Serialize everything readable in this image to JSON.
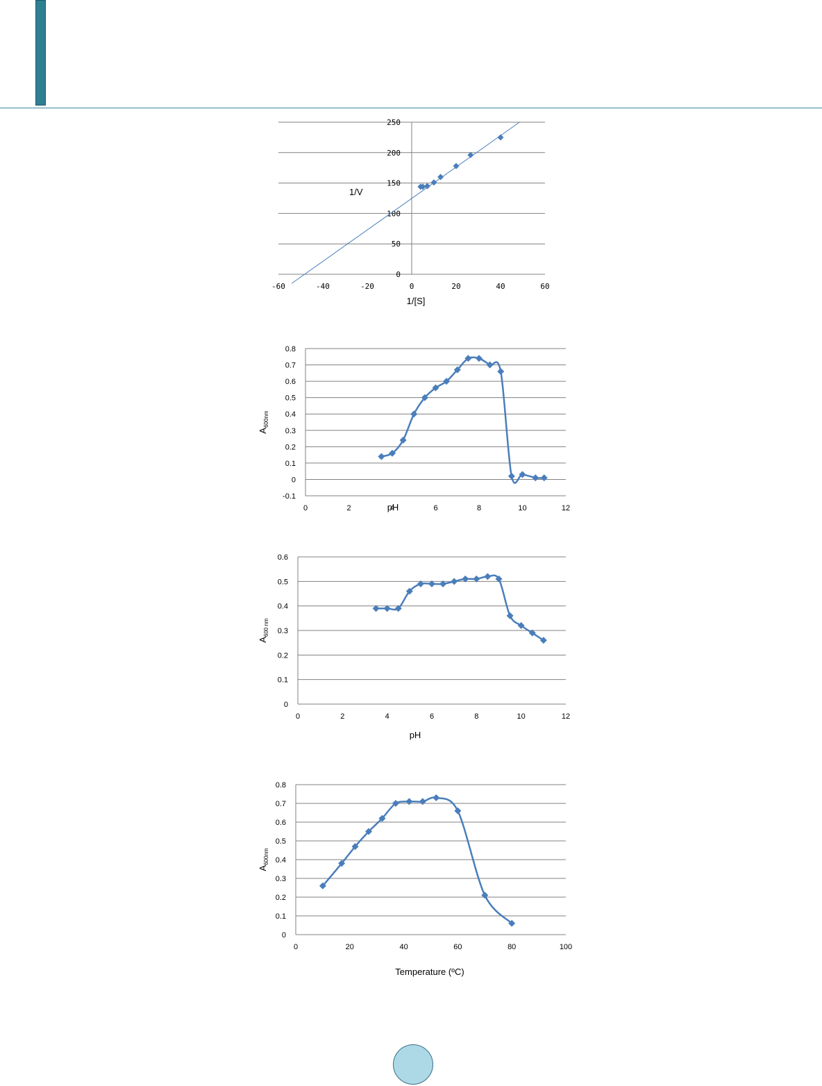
{
  "chart_data": [
    {
      "type": "scatter",
      "xlabel": "1/[S]",
      "ylabel": "1/V",
      "xlim": [
        -60,
        60
      ],
      "ylim": [
        0,
        250
      ],
      "xticks": [
        -60,
        -40,
        -20,
        0,
        20,
        40,
        60
      ],
      "yticks": [
        0,
        50,
        100,
        150,
        200,
        250
      ],
      "grid": true,
      "points": {
        "x": [
          4,
          5,
          7,
          10,
          13,
          20,
          26.5,
          40
        ],
        "y": [
          144,
          144,
          145,
          151,
          160,
          178,
          196,
          225
        ]
      },
      "trendline": {
        "x": [
          -54,
          48.5
        ],
        "y": [
          -15,
          250
        ]
      },
      "colors": {
        "marker": "#4a7ebb",
        "line": "#4a7ebb"
      }
    },
    {
      "type": "line",
      "xlabel": "pH",
      "ylabel": "A",
      "ylabel_sub": "600nm",
      "xlim": [
        0,
        12
      ],
      "ylim": [
        -0.1,
        0.8
      ],
      "xticks": [
        0,
        2,
        4,
        6,
        8,
        10,
        12
      ],
      "yticks": [
        -0.1,
        0,
        0.1,
        0.2,
        0.3,
        0.4,
        0.5,
        0.6,
        0.7,
        0.8
      ],
      "grid": true,
      "x": [
        3.5,
        4,
        4.5,
        5,
        5.5,
        6,
        6.5,
        7,
        7.5,
        8,
        8.5,
        9,
        9.5,
        10,
        10.6,
        11
      ],
      "y": [
        0.14,
        0.16,
        0.24,
        0.4,
        0.5,
        0.56,
        0.6,
        0.67,
        0.74,
        0.74,
        0.7,
        0.66,
        0.02,
        0.03,
        0.01,
        0.01
      ],
      "colors": {
        "marker": "#4a7ebb",
        "line": "#4a7ebb"
      }
    },
    {
      "type": "line",
      "xlabel": "pH",
      "ylabel": "A",
      "ylabel_sub": "600 nm",
      "xlim": [
        0,
        12
      ],
      "ylim": [
        0,
        0.6
      ],
      "xticks": [
        0,
        2,
        4,
        6,
        8,
        10,
        12
      ],
      "yticks": [
        0,
        0.1,
        0.2,
        0.3,
        0.4,
        0.5,
        0.6
      ],
      "grid": true,
      "x": [
        3.5,
        4,
        4.5,
        5,
        5.5,
        6,
        6.5,
        7,
        7.5,
        8,
        8.5,
        9,
        9.5,
        10,
        10.5,
        11
      ],
      "y": [
        0.39,
        0.39,
        0.39,
        0.46,
        0.49,
        0.49,
        0.49,
        0.5,
        0.51,
        0.51,
        0.52,
        0.51,
        0.36,
        0.32,
        0.29,
        0.26
      ],
      "colors": {
        "marker": "#4a7ebb",
        "line": "#4a7ebb"
      }
    },
    {
      "type": "line",
      "xlabel": "Temperature (ºC)",
      "ylabel": "A",
      "ylabel_sub": "600nm",
      "xlim": [
        0,
        100
      ],
      "ylim": [
        0,
        0.8
      ],
      "xticks": [
        0,
        20,
        40,
        60,
        80,
        100
      ],
      "yticks": [
        0,
        0.1,
        0.2,
        0.3,
        0.4,
        0.5,
        0.6,
        0.7,
        0.8
      ],
      "grid": true,
      "x": [
        10,
        17,
        22,
        27,
        32,
        37,
        42,
        47,
        52,
        60,
        70,
        80
      ],
      "y": [
        0.26,
        0.38,
        0.47,
        0.55,
        0.62,
        0.7,
        0.71,
        0.71,
        0.73,
        0.66,
        0.21,
        0.06
      ],
      "colors": {
        "marker": "#4a7ebb",
        "line": "#4a7ebb"
      }
    }
  ]
}
